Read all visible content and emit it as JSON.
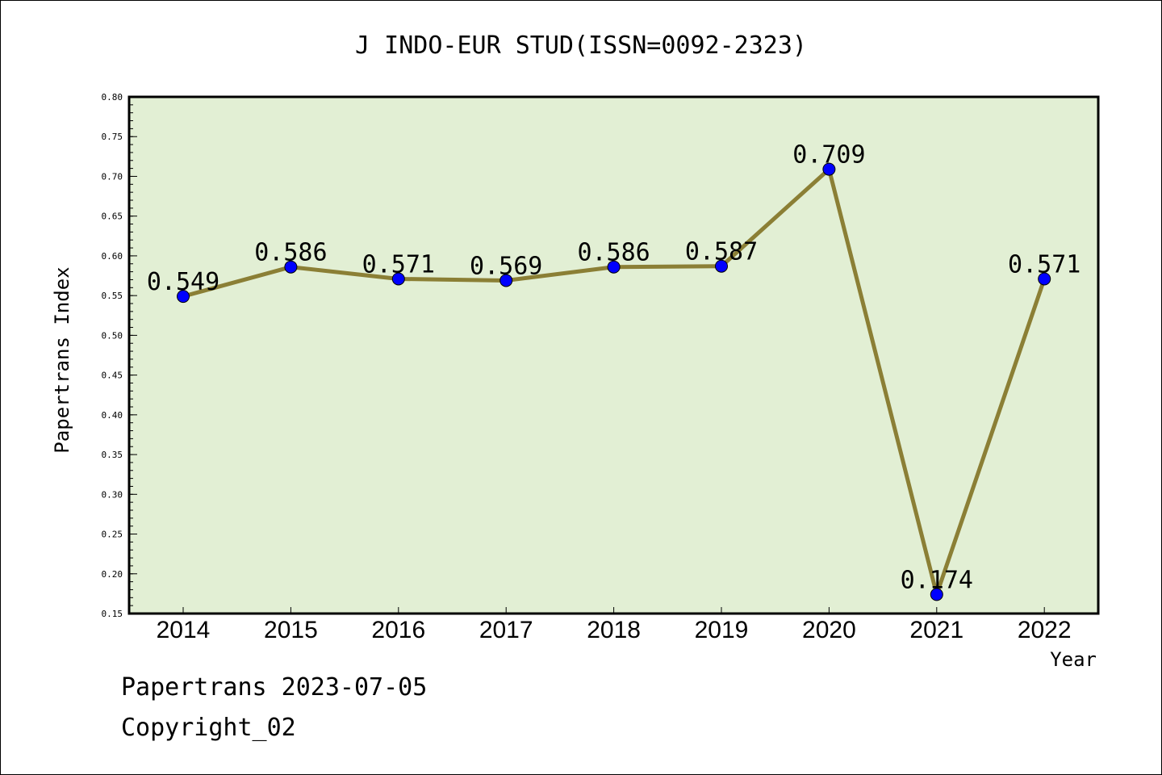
{
  "chart_data": {
    "type": "line",
    "title": "J INDO-EUR STUD(ISSN=0092-2323)",
    "xlabel": "Year",
    "ylabel": "Papertrans Index",
    "categories": [
      "2014",
      "2015",
      "2016",
      "2017",
      "2018",
      "2019",
      "2020",
      "2021",
      "2022"
    ],
    "series": [
      {
        "values": [
          0.549,
          0.586,
          0.571,
          0.569,
          0.586,
          0.587,
          0.709,
          0.174,
          0.571
        ]
      }
    ],
    "data_labels": [
      "0.549",
      "0.586",
      "0.571",
      "0.569",
      "0.586",
      "0.587",
      "0.709",
      "0.174",
      "0.571"
    ],
    "ylim": [
      0.15,
      0.8
    ],
    "y_ticks": [
      "0.15",
      "0.20",
      "0.25",
      "0.30",
      "0.35",
      "0.40",
      "0.45",
      "0.50",
      "0.55",
      "0.60",
      "0.65",
      "0.70",
      "0.75",
      "0.80"
    ],
    "grid": false,
    "legend": "none",
    "colors": {
      "plot_background": "#e2efd4",
      "line": "#8b7f35",
      "marker": "#0000ff",
      "axis": "#000000"
    }
  },
  "footer": {
    "line1": "Papertrans 2023-07-05",
    "line2": "Copyright_02"
  }
}
